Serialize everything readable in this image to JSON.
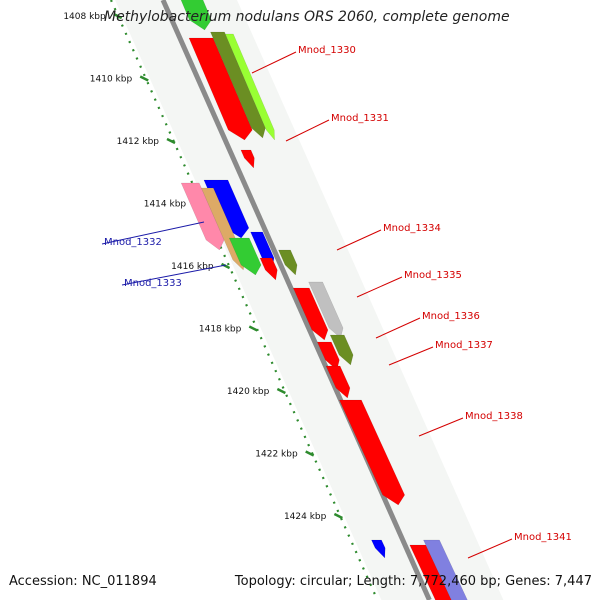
{
  "title": "Methylobacterium nodulans ORS 2060, complete genome",
  "footer": {
    "accession": "Accession: NC_011894",
    "topology": "Topology: circular; Length: 7,772,460 bp; Genes: 7,447"
  },
  "ticks": [
    "1408 kbp",
    "1410 kbp",
    "1412 kbp",
    "1414 kbp",
    "1416 kbp",
    "1418 kbp",
    "1420 kbp",
    "1422 kbp",
    "1424 kbp"
  ],
  "gene_labels": [
    {
      "name": "Mnod_1330",
      "color": "#d40000"
    },
    {
      "name": "Mnod_1331",
      "color": "#d40000"
    },
    {
      "name": "Mnod_1332",
      "color": "#1a1aa8"
    },
    {
      "name": "Mnod_1333",
      "color": "#1a1aa8"
    },
    {
      "name": "Mnod_1334",
      "color": "#d40000"
    },
    {
      "name": "Mnod_1335",
      "color": "#d40000"
    },
    {
      "name": "Mnod_1336",
      "color": "#d40000"
    },
    {
      "name": "Mnod_1337",
      "color": "#d40000"
    },
    {
      "name": "Mnod_1338",
      "color": "#d40000"
    },
    {
      "name": "Mnod_1341",
      "color": "#d40000"
    }
  ],
  "colors": {
    "backbone": "#8a8a8a",
    "ruler": "#2e8b2e",
    "gene_red": "#ff0000",
    "gene_blue": "#0000ff",
    "gene_green": "#33cc33",
    "gene_olive": "#6b8e23",
    "gene_grey": "#c0c0c0",
    "gene_lime": "#99ff33",
    "gene_lavender": "#8080e0"
  }
}
